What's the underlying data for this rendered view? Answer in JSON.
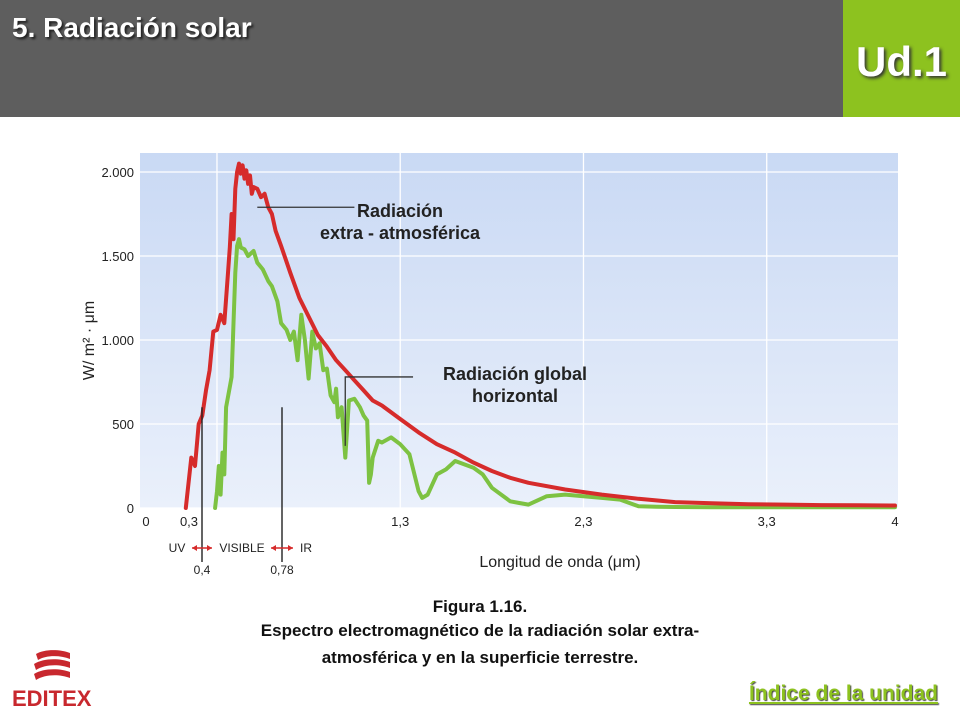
{
  "header": {
    "title": "5. Radiación solar",
    "unit_label": "Ud.1"
  },
  "colors": {
    "header_bg": "#5e5e5e",
    "accent": "#8dc21f",
    "plot_bg_top": "#c9d9f4",
    "plot_bg_bottom": "#eaf0fb",
    "extra_series": "#d62b2b",
    "global_series": "#7dc242",
    "logo_red": "#c8282e"
  },
  "chart_data": {
    "type": "line",
    "ylabel": "W/ m² · μm",
    "xlabel": "Longitud de onda (μm)",
    "xlim": [
      0,
      4
    ],
    "ylim": [
      0,
      2000
    ],
    "grid": true,
    "x_ticks": [
      {
        "value": 0,
        "label": "0"
      },
      {
        "value": 0.3,
        "label": "0,3"
      },
      {
        "value": 1.3,
        "label": "1,3"
      },
      {
        "value": 2.3,
        "label": "2,3"
      },
      {
        "value": 3.3,
        "label": "3,3"
      },
      {
        "value": 4,
        "label": "4"
      }
    ],
    "y_ticks": [
      {
        "value": 0,
        "label": "0"
      },
      {
        "value": 500,
        "label": "500"
      },
      {
        "value": 1000,
        "label": "1.000"
      },
      {
        "value": 1500,
        "label": "1.500"
      },
      {
        "value": 2000,
        "label": "2.000"
      }
    ],
    "bands": [
      {
        "label": "UV"
      },
      {
        "label": "VISIBLE"
      },
      {
        "label": "IR"
      }
    ],
    "band_boundaries": [
      {
        "value": 0.4,
        "label": "0,4"
      },
      {
        "value": 0.78,
        "label": "0,78"
      }
    ],
    "series": [
      {
        "name": "Radiación extra - atmosférica",
        "x": [
          0.13,
          0.16,
          0.18,
          0.2,
          0.22,
          0.24,
          0.26,
          0.28,
          0.3,
          0.32,
          0.34,
          0.36,
          0.37,
          0.38,
          0.39,
          0.4,
          0.41,
          0.42,
          0.43,
          0.44,
          0.45,
          0.46,
          0.47,
          0.48,
          0.49,
          0.5,
          0.52,
          0.54,
          0.56,
          0.58,
          0.6,
          0.62,
          0.65,
          0.7,
          0.75,
          0.8,
          0.85,
          0.9,
          0.95,
          1.0,
          1.05,
          1.1,
          1.15,
          1.2,
          1.3,
          1.4,
          1.5,
          1.6,
          1.7,
          1.8,
          1.9,
          2.0,
          2.2,
          2.4,
          2.6,
          2.8,
          3.0,
          3.2,
          3.4,
          3.6,
          3.8,
          4.0
        ],
        "y": [
          0,
          300,
          250,
          500,
          550,
          700,
          820,
          1050,
          1060,
          1150,
          1100,
          1400,
          1550,
          1750,
          1600,
          1900,
          2000,
          2050,
          1990,
          2040,
          1960,
          2010,
          1930,
          1980,
          1870,
          1910,
          1900,
          1850,
          1870,
          1790,
          1750,
          1650,
          1560,
          1400,
          1250,
          1140,
          1030,
          960,
          880,
          820,
          760,
          700,
          640,
          610,
          530,
          450,
          380,
          330,
          270,
          220,
          180,
          150,
          110,
          80,
          55,
          35,
          28,
          22,
          20,
          17,
          16,
          15
        ]
      },
      {
        "name": "Radiación global horizontal",
        "x": [
          0.29,
          0.3,
          0.31,
          0.32,
          0.33,
          0.34,
          0.35,
          0.37,
          0.38,
          0.39,
          0.4,
          0.41,
          0.42,
          0.43,
          0.45,
          0.47,
          0.5,
          0.52,
          0.55,
          0.58,
          0.6,
          0.63,
          0.65,
          0.68,
          0.7,
          0.72,
          0.74,
          0.76,
          0.78,
          0.8,
          0.82,
          0.84,
          0.86,
          0.88,
          0.9,
          0.92,
          0.94,
          0.95,
          0.96,
          0.98,
          1.0,
          1.02,
          1.05,
          1.08,
          1.1,
          1.12,
          1.13,
          1.14,
          1.15,
          1.18,
          1.2,
          1.25,
          1.3,
          1.35,
          1.4,
          1.42,
          1.45,
          1.5,
          1.55,
          1.6,
          1.7,
          1.75,
          1.8,
          1.9,
          1.95,
          2.0,
          2.1,
          2.2,
          2.3,
          2.4,
          2.5,
          2.6,
          2.7,
          2.8,
          3.0,
          3.2,
          3.4,
          3.6,
          3.8,
          4.0
        ],
        "y": [
          0,
          100,
          250,
          80,
          330,
          200,
          600,
          720,
          780,
          1100,
          1400,
          1560,
          1600,
          1550,
          1540,
          1500,
          1530,
          1460,
          1420,
          1350,
          1320,
          1230,
          1100,
          1060,
          1000,
          1050,
          880,
          1150,
          1000,
          770,
          1050,
          950,
          980,
          820,
          830,
          670,
          630,
          710,
          540,
          600,
          300,
          640,
          650,
          600,
          550,
          520,
          150,
          200,
          300,
          400,
          390,
          420,
          380,
          320,
          100,
          60,
          80,
          200,
          230,
          280,
          240,
          200,
          120,
          40,
          30,
          20,
          70,
          80,
          70,
          60,
          50,
          10,
          8,
          6,
          5,
          5,
          5,
          5,
          5,
          5
        ]
      }
    ],
    "annotations": [
      {
        "lines": [
          "Radiación",
          "extra - atmosférica"
        ],
        "series": 0
      },
      {
        "lines": [
          "Radiación global",
          "horizontal"
        ],
        "series": 1
      }
    ]
  },
  "caption": {
    "line1": "Figura 1.16.",
    "line2": "Espectro electromagnético de la radiación solar extra-",
    "line3": "atmosférica y en la superficie terrestre."
  },
  "footer": {
    "logo_text": "EDITEX",
    "index_link": "Índice de la unidad"
  }
}
